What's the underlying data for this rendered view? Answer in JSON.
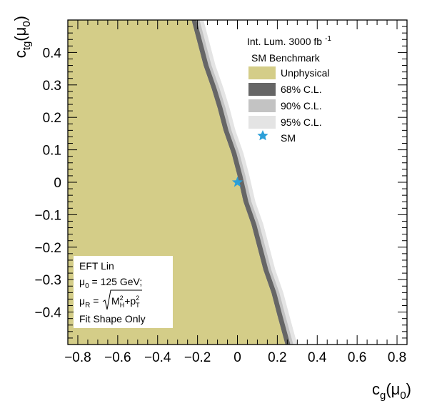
{
  "chart_data": {
    "type": "heatmap",
    "xlabel": "c_g(μ_0)",
    "ylabel": "c_tg(μ_0)",
    "xlim": [
      -0.85,
      0.85
    ],
    "ylim": [
      -0.5,
      0.5
    ],
    "xticks": [
      -0.8,
      -0.6,
      -0.4,
      -0.2,
      0,
      0.2,
      0.4,
      0.6,
      0.8
    ],
    "xtick_labels": [
      "−0.8",
      "−0.6",
      "−0.4",
      "−0.2",
      "0",
      "0.2",
      "0.4",
      "0.6",
      "0.8"
    ],
    "yticks": [
      0.4,
      0.3,
      0.2,
      0.1,
      0,
      -0.1,
      -0.2,
      -0.3,
      -0.4
    ],
    "ytick_labels": [
      "0.4",
      "0.3",
      "0.2",
      "0.1",
      "0",
      "−0.1",
      "−0.2",
      "−0.3",
      "−0.4"
    ],
    "legend": {
      "title": "Int. Lum. 3000 fb",
      "title_superscript": "-1",
      "header": "SM Benchmark",
      "entries": [
        {
          "label": "Unphysical",
          "color": "#d4cd88"
        },
        {
          "label": "68% C.L.",
          "color": "#666666"
        },
        {
          "label": "90% C.L.",
          "color": "#c3c3c3"
        },
        {
          "label": "95% C.L.",
          "color": "#e4e4e4"
        },
        {
          "label": "SM",
          "color": "#2b9fd8"
        }
      ]
    },
    "info_box": {
      "line1": "EFT Lin",
      "line2": "μ_0 = 125 GeV;",
      "line3": "μ_R = √(M_H^2+p_T^2)",
      "line4": "Fit Shape Only"
    },
    "sm_point": {
      "x": 0,
      "y": 0
    },
    "unphysical_boundary": {
      "comment_free": true,
      "x": [
        -0.23,
        -0.2,
        -0.17,
        -0.13,
        -0.1,
        -0.07,
        -0.03,
        0.0,
        0.03,
        0.07,
        0.1,
        0.13,
        0.17,
        0.2,
        0.24
      ],
      "y": [
        0.5,
        0.43,
        0.36,
        0.29,
        0.23,
        0.16,
        0.09,
        0.02,
        -0.06,
        -0.13,
        -0.2,
        -0.27,
        -0.34,
        -0.41,
        -0.5
      ]
    },
    "band_68_width": 0.025,
    "band_90_width": 0.04,
    "band_95_width": 0.06,
    "colors": {
      "unphysical": "#d4cd88",
      "cl68": "#666666",
      "cl90": "#c3c3c3",
      "cl95": "#e4e4e4",
      "sm_star": "#2b9fd8"
    }
  }
}
